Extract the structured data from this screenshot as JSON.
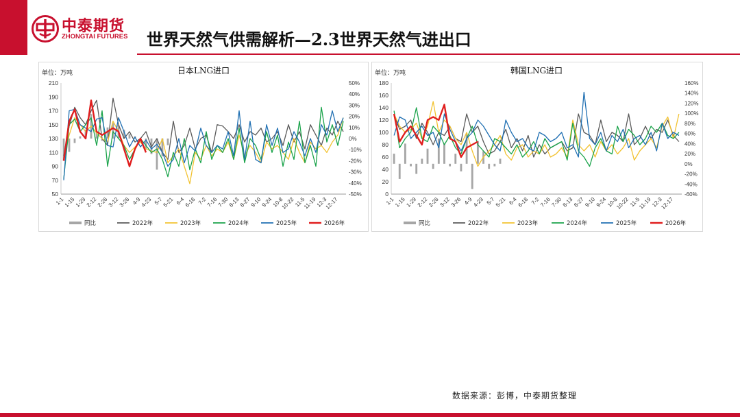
{
  "header": {
    "logo_cn": "中泰期货",
    "logo_en": "ZHONGTAI FUTURES",
    "title": "世界天然气供需解析—2.3世界天然气进出口"
  },
  "footer": {
    "source": "数据来源：彭博，中泰期货整理"
  },
  "colors": {
    "brand": "#c8102e",
    "yoy": "#a6a6a6",
    "s2022": "#595959",
    "s2023": "#f2c230",
    "s2024": "#1aa34a",
    "s2025": "#1f6fb2",
    "s2026": "#e01e1e"
  },
  "chart_data": [
    {
      "type": "line",
      "title": "日本LNG进口",
      "unit_label": "单位：万吨",
      "ylim": [
        50,
        210
      ],
      "yticks": [
        "210",
        "190",
        "170",
        "150",
        "130",
        "110",
        "90",
        "70",
        "50"
      ],
      "y2lim": [
        -50,
        50
      ],
      "y2ticks": [
        "50%",
        "40%",
        "30%",
        "20%",
        "10%",
        "0%",
        "-10%",
        "-20%",
        "-30%",
        "-40%",
        "-50%"
      ],
      "xticks": [
        "1-1",
        "1-15",
        "1-29",
        "2-12",
        "2-26",
        "3-12",
        "3-26",
        "4-9",
        "4-23",
        "5-7",
        "5-21",
        "6-4",
        "6-18",
        "7-2",
        "7-16",
        "7-30",
        "8-13",
        "8-27",
        "9-10",
        "9-24",
        "10-8",
        "10-22",
        "11-5",
        "11-19",
        "12-3",
        "12-17"
      ],
      "legend": [
        "同比",
        "2022年",
        "2023年",
        "2024年",
        "2025年",
        "2026年"
      ],
      "yoy": [
        -20,
        -12,
        -4,
        2,
        8,
        22,
        6,
        -2,
        10,
        14,
        12,
        8,
        4,
        2,
        -4,
        -10,
        -14,
        -28,
        -16,
        -6
      ],
      "series": [
        {
          "name": "2022年",
          "values": [
            105,
            148,
            175,
            160,
            150,
            170,
            185,
            130,
            120,
            188,
            150,
            130,
            140,
            125,
            130,
            140,
            118,
            130,
            110,
            100,
            155,
            110,
            120,
            145,
            115,
            130,
            135,
            110,
            150,
            148,
            140,
            130,
            150,
            125,
            140,
            135,
            145,
            125,
            130,
            140,
            120,
            150,
            125,
            140,
            115,
            150,
            135,
            120,
            145,
            135,
            155,
            140
          ]
        },
        {
          "name": "2023年",
          "values": [
            98,
            135,
            160,
            150,
            140,
            148,
            138,
            130,
            125,
            155,
            140,
            120,
            110,
            118,
            125,
            115,
            112,
            110,
            130,
            95,
            105,
            115,
            90,
            65,
            110,
            100,
            120,
            105,
            115,
            110,
            125,
            100,
            135,
            105,
            120,
            110,
            95,
            125,
            115,
            120,
            110,
            100,
            130,
            110,
            95,
            125,
            115,
            120,
            110,
            125,
            135,
            160
          ]
        },
        {
          "name": "2024年",
          "values": [
            72,
            150,
            158,
            140,
            150,
            160,
            120,
            170,
            90,
            140,
            130,
            120,
            100,
            115,
            130,
            120,
            110,
            115,
            100,
            75,
            110,
            90,
            130,
            85,
            115,
            95,
            140,
            100,
            120,
            110,
            130,
            100,
            145,
            95,
            130,
            120,
            100,
            140,
            110,
            135,
            90,
            125,
            100,
            155,
            95,
            120,
            90,
            175,
            125,
            150,
            120,
            155
          ]
        },
        {
          "name": "2025年",
          "values": [
            70,
            170,
            172,
            150,
            145,
            140,
            158,
            160,
            120,
            118,
            160,
            140,
            118,
            132,
            118,
            128,
            115,
            122,
            110,
            90,
            100,
            130,
            95,
            120,
            112,
            145,
            120,
            110,
            120,
            115,
            140,
            105,
            170,
            100,
            155,
            100,
            95,
            150,
            120,
            145,
            110,
            115,
            140,
            125,
            105,
            130,
            110,
            150,
            135,
            170,
            140,
            160
          ]
        },
        {
          "name": "2026年",
          "values": [
            98,
            155,
            172,
            140,
            130,
            185,
            140,
            135,
            140,
            145,
            140,
            115,
            90,
            115,
            130,
            110
          ]
        }
      ]
    },
    {
      "type": "line",
      "title": "韩国LNG进口",
      "unit_label": "单位：万吨",
      "ylim": [
        0,
        180
      ],
      "yticks": [
        "180",
        "160",
        "140",
        "120",
        "100",
        "80",
        "60",
        "40",
        "20",
        "0"
      ],
      "y2lim": [
        -60,
        160
      ],
      "y2ticks": [
        "160%",
        "140%",
        "120%",
        "100%",
        "80%",
        "60%",
        "40%",
        "20%",
        "0%",
        "-20%",
        "-40%",
        "-60%"
      ],
      "xticks": [
        "1-1",
        "1-15",
        "1-29",
        "2-12",
        "2-26",
        "3-12",
        "3-26",
        "4-9",
        "4-23",
        "5-7",
        "5-21",
        "6-4",
        "6-18",
        "7-2",
        "7-16",
        "7-30",
        "8-13",
        "8-27",
        "9-10",
        "9-24",
        "10-8",
        "10-22",
        "11-5",
        "11-19",
        "12-3",
        "12-17"
      ],
      "legend": [
        "同比",
        "2022年",
        "2023年",
        "2024年",
        "2025年",
        "2026年"
      ],
      "yoy": [
        20,
        -30,
        40,
        -5,
        -20,
        10,
        30,
        -10,
        50,
        40,
        -5,
        20,
        -15,
        60,
        -50,
        45,
        25,
        -10,
        -5,
        10
      ],
      "series": [
        {
          "name": "2022年",
          "values": [
            130,
            105,
            110,
            120,
            90,
            115,
            100,
            80,
            100,
            95,
            110,
            90,
            85,
            130,
            100,
            110,
            85,
            65,
            70,
            85,
            105,
            75,
            90,
            70,
            95,
            60,
            80,
            65,
            75,
            80,
            85,
            70,
            75,
            130,
            100,
            95,
            80,
            120,
            85,
            100,
            95,
            85,
            130,
            80,
            90,
            110,
            90,
            105,
            100,
            120,
            95,
            85
          ]
        },
        {
          "name": "2023年",
          "values": [
            130,
            110,
            100,
            105,
            115,
            90,
            110,
            150,
            100,
            120,
            110,
            90,
            80,
            100,
            70,
            45,
            60,
            70,
            80,
            95,
            65,
            55,
            75,
            80,
            60,
            70,
            65,
            80,
            60,
            65,
            75,
            60,
            120,
            80,
            70,
            80,
            60,
            85,
            70,
            80,
            65,
            75,
            90,
            55,
            70,
            80,
            90,
            75,
            110,
            125,
            90,
            130
          ]
        },
        {
          "name": "2024年",
          "values": [
            135,
            75,
            90,
            100,
            140,
            90,
            85,
            110,
            100,
            80,
            95,
            75,
            65,
            90,
            110,
            80,
            70,
            60,
            90,
            85,
            75,
            65,
            80,
            60,
            70,
            85,
            65,
            90,
            75,
            80,
            85,
            55,
            115,
            70,
            60,
            45,
            75,
            90,
            70,
            65,
            110,
            85,
            105,
            95,
            80,
            90,
            110,
            100,
            115,
            95,
            90,
            100
          ]
        },
        {
          "name": "2025年",
          "values": [
            95,
            125,
            120,
            90,
            100,
            110,
            95,
            100,
            75,
            130,
            105,
            85,
            70,
            90,
            100,
            120,
            110,
            95,
            80,
            70,
            120,
            100,
            85,
            90,
            75,
            70,
            100,
            95,
            85,
            90,
            100,
            75,
            80,
            60,
            165,
            90,
            80,
            100,
            70,
            95,
            85,
            105,
            75,
            90,
            95,
            80,
            100,
            70,
            115,
            90,
            100,
            95
          ]
        },
        {
          "name": "2026年",
          "values": [
            130,
            85,
            100,
            110,
            95,
            80,
            120,
            125,
            120,
            145,
            90,
            85,
            60,
            75,
            80,
            85
          ]
        }
      ]
    }
  ]
}
